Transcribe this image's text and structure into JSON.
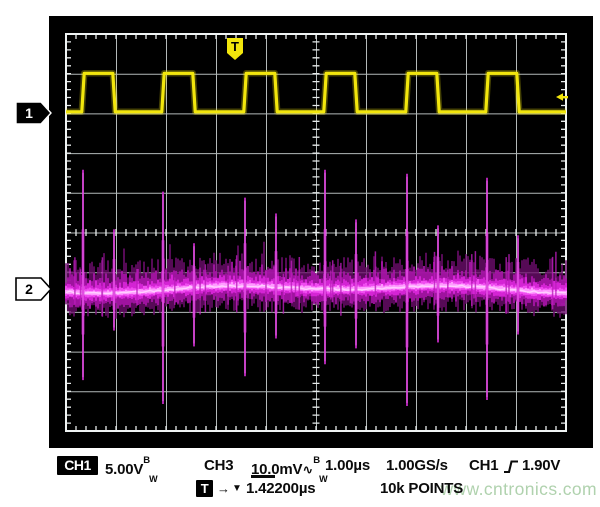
{
  "colors": {
    "screen_bg": "#000000",
    "grid_line": "#b3b9b9",
    "grid_border": "#f0f4f4",
    "grid_tick": "#e6eaea",
    "ch1_trace": "#f2e60c",
    "ch3_trace": "#e020e0",
    "ch3_core": "#ff9cff",
    "readout_text": "#0b0b0b",
    "watermark": "#b0d2ae"
  },
  "screen": {
    "trigger_flag_label": "T",
    "ch1_marker_label": "1",
    "ch2_marker_label": "2"
  },
  "readout": {
    "ch1_label": "CH1",
    "ch1_scale": "5.00V",
    "bw_sup": "B",
    "bw_sub": "W",
    "ch3_label": "CH3",
    "ch3_scale": "10.0mV",
    "ch3_coupling_icon": "∿",
    "timebase": "1.00µs",
    "sample_rate": "1.00GS/s",
    "trigger_source": "CH1",
    "trigger_level": "1.90V",
    "trigger_badge": "T",
    "trigger_arrow": "→",
    "trigger_marker": "▼",
    "trigger_delay": "1.42200µs",
    "record_length": "10k POINTS"
  },
  "watermark_text": "www.cntronics.com",
  "chart_data": {
    "type": "line",
    "subtype": "oscilloscope-capture",
    "title": "CH1 square wave (gate drive) with CH3 switching-noise band",
    "graticule": {
      "h_divisions": 10,
      "v_divisions": 10
    },
    "timebase": "1.00µs/div",
    "sample_rate": "1.00GS/s",
    "record_length": "10k points",
    "trigger": {
      "source": "CH1",
      "slope": "rising",
      "level": "1.90V",
      "delay": "1.42200µs"
    },
    "noise_seed": 20240613,
    "series": [
      {
        "name": "CH1",
        "color": "#f2e60c",
        "volts_per_div": "5.00V",
        "shape": "square",
        "high_div_from_top": 0.99,
        "low_div_from_top": 1.96,
        "rising_edge_divs": [
          0.34,
          1.94,
          3.58,
          5.18,
          6.82,
          8.42
        ],
        "pulse_width_div": 0.62,
        "period_div": 1.63,
        "duty_cycle_pct": 38
      },
      {
        "name": "CH3",
        "color": "#e020e0",
        "volts_per_div": "10.0mV",
        "shape": "noise-band",
        "center_div_from_top": 6.42,
        "band_fuzz_up_div": 0.85,
        "band_fuzz_down_div": 0.65,
        "minor_spike_count": 30,
        "spikes": [
          {
            "x": 0.34,
            "up": 3.0,
            "down": 2.3
          },
          {
            "x": 0.96,
            "up": 1.5,
            "down": 1.05
          },
          {
            "x": 1.94,
            "up": 2.45,
            "down": 2.9
          },
          {
            "x": 2.56,
            "up": 1.15,
            "down": 1.45
          },
          {
            "x": 3.58,
            "up": 2.3,
            "down": 2.2
          },
          {
            "x": 4.2,
            "up": 1.9,
            "down": 1.25
          },
          {
            "x": 5.18,
            "up": 3.0,
            "down": 1.9
          },
          {
            "x": 5.8,
            "up": 1.75,
            "down": 1.5
          },
          {
            "x": 6.82,
            "up": 2.9,
            "down": 2.95
          },
          {
            "x": 7.44,
            "up": 1.6,
            "down": 1.35
          },
          {
            "x": 8.42,
            "up": 2.8,
            "down": 2.8
          },
          {
            "x": 9.04,
            "up": 1.35,
            "down": 1.15
          }
        ]
      }
    ]
  }
}
